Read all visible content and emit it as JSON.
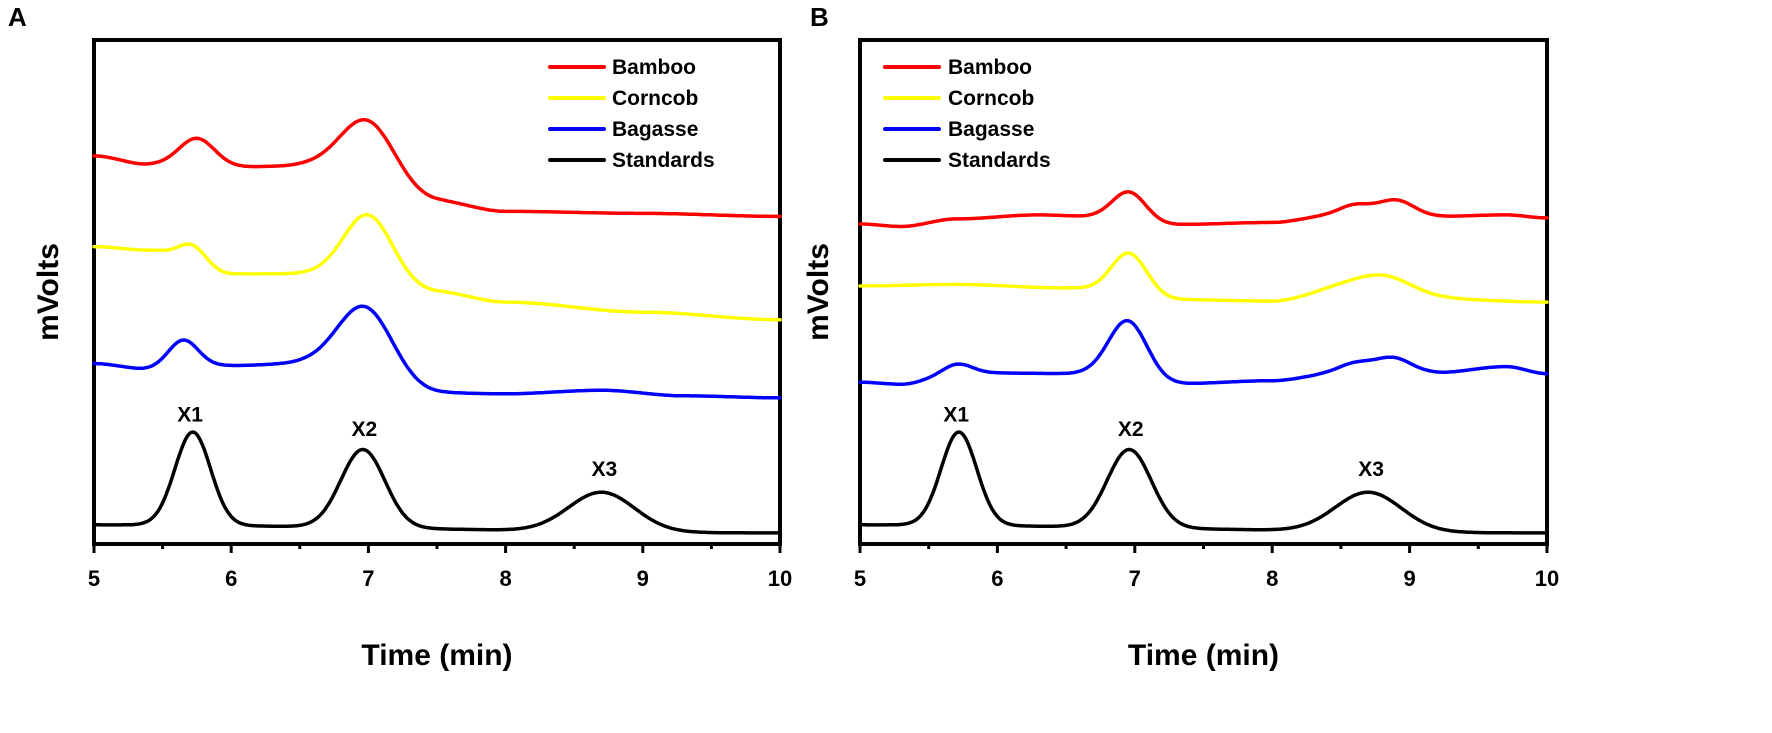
{
  "chart_data": [
    {
      "type": "line",
      "panel_label": "A",
      "xlabel": "Time (min)",
      "ylabel": "mVolts",
      "xlim": [
        5,
        10
      ],
      "ylim": [
        0,
        100
      ],
      "x_ticks": [
        "5",
        "6",
        "7",
        "8",
        "9",
        "10"
      ],
      "legend": {
        "placement": "top-right",
        "entries": [
          {
            "name": "Bamboo",
            "color": "#ff0000"
          },
          {
            "name": "Corncob",
            "color": "#ffff00"
          },
          {
            "name": "Bagasse",
            "color": "#0000ff"
          },
          {
            "name": "Standards",
            "color": "#000000"
          }
        ]
      },
      "series": [
        {
          "name": "Bamboo",
          "color": "#ff0000",
          "baseline": [
            [
              5,
              77
            ],
            [
              5.4,
              75.3
            ],
            [
              6.0,
              74.8
            ],
            [
              6.5,
              75
            ],
            [
              7.5,
              68
            ],
            [
              8.0,
              66
            ],
            [
              9.0,
              65.6
            ],
            [
              10,
              65
            ]
          ],
          "peaks": [
            [
              5.75,
              5.5,
              0.13
            ],
            [
              7.0,
              12.5,
              0.2
            ]
          ]
        },
        {
          "name": "Corncob",
          "color": "#ffff00",
          "baseline": [
            [
              5,
              59
            ],
            [
              5.4,
              58.3
            ],
            [
              6.0,
              53.6
            ],
            [
              6.5,
              53.6
            ],
            [
              7.5,
              50
            ],
            [
              8.0,
              48
            ],
            [
              9.0,
              46
            ],
            [
              10,
              44.5
            ]
          ],
          "peaks": [
            [
              5.72,
              3.6,
              0.1
            ],
            [
              7.0,
              13.5,
              0.18
            ]
          ]
        },
        {
          "name": "Bagasse",
          "color": "#0000ff",
          "baseline": [
            [
              5,
              35.8
            ],
            [
              5.4,
              34.7
            ],
            [
              6.0,
              35.4
            ],
            [
              6.5,
              35.8
            ],
            [
              7.5,
              30
            ],
            [
              8.0,
              29.8
            ],
            [
              8.7,
              30.5
            ],
            [
              9.3,
              29.4
            ],
            [
              10,
              29
            ]
          ],
          "peaks": [
            [
              5.65,
              5.5,
              0.11
            ],
            [
              6.98,
              14,
              0.2
            ]
          ]
        },
        {
          "name": "Standards",
          "color": "#000000",
          "baseline": [
            [
              5,
              3.8
            ],
            [
              10,
              2.2
            ]
          ],
          "peaks": [
            [
              5.72,
              18.5,
              0.13
            ],
            [
              6.96,
              15.5,
              0.16
            ],
            [
              8.7,
              7.8,
              0.24
            ]
          ]
        }
      ],
      "annotations": [
        {
          "text": "X1",
          "x": 5.7,
          "y": 24.3
        },
        {
          "text": "X2",
          "x": 6.97,
          "y": 21.4
        },
        {
          "text": "X3",
          "x": 8.72,
          "y": 13.5
        }
      ]
    },
    {
      "type": "line",
      "panel_label": "B",
      "xlabel": "Time (min)",
      "ylabel": "mVolts",
      "xlim": [
        5,
        10
      ],
      "ylim": [
        0,
        100
      ],
      "x_ticks": [
        "5",
        "6",
        "7",
        "8",
        "9",
        "10"
      ],
      "legend": {
        "placement": "top-left",
        "entries": [
          {
            "name": "Bamboo",
            "color": "#ff0000"
          },
          {
            "name": "Corncob",
            "color": "#ffff00"
          },
          {
            "name": "Bagasse",
            "color": "#0000ff"
          },
          {
            "name": "Standards",
            "color": "#000000"
          }
        ]
      },
      "series": [
        {
          "name": "Bamboo",
          "color": "#ff0000",
          "baseline": [
            [
              5,
              63.5
            ],
            [
              5.3,
              63
            ],
            [
              5.7,
              64.5
            ],
            [
              6.3,
              65.3
            ],
            [
              6.7,
              65
            ],
            [
              7.3,
              63.4
            ],
            [
              8.0,
              63.8
            ],
            [
              8.4,
              65
            ],
            [
              9.2,
              65
            ],
            [
              9.7,
              65.3
            ],
            [
              10,
              64.7
            ]
          ],
          "peaks": [
            [
              6.96,
              5.5,
              0.12
            ],
            [
              8.6,
              2.2,
              0.12
            ],
            [
              8.9,
              3.2,
              0.13
            ]
          ]
        },
        {
          "name": "Corncob",
          "color": "#ffff00",
          "baseline": [
            [
              5,
              51.2
            ],
            [
              5.7,
              51.5
            ],
            [
              6.5,
              50.8
            ],
            [
              7.3,
              48.5
            ],
            [
              8.0,
              48.2
            ],
            [
              8.5,
              50.5
            ],
            [
              9.2,
              48.6
            ],
            [
              10,
              48
            ]
          ],
          "peaks": [
            [
              6.96,
              8.3,
              0.13
            ],
            [
              8.82,
              3.6,
              0.22
            ]
          ]
        },
        {
          "name": "Bagasse",
          "color": "#0000ff",
          "baseline": [
            [
              5,
              32.1
            ],
            [
              5.3,
              31.7
            ],
            [
              5.7,
              34
            ],
            [
              6.6,
              33.8
            ],
            [
              7.3,
              31.8
            ],
            [
              8.0,
              32.4
            ],
            [
              8.4,
              33.5
            ],
            [
              9.2,
              34
            ],
            [
              9.7,
              35.2
            ],
            [
              10,
              33.8
            ]
          ],
          "peaks": [
            [
              5.72,
              1.7,
              0.1
            ],
            [
              6.95,
              11.5,
              0.14
            ],
            [
              8.6,
              2.2,
              0.13
            ],
            [
              8.88,
              3,
              0.13
            ]
          ]
        },
        {
          "name": "Standards",
          "color": "#000000",
          "baseline": [
            [
              5,
              3.8
            ],
            [
              10,
              2.2
            ]
          ],
          "peaks": [
            [
              5.72,
              18.5,
              0.13
            ],
            [
              6.96,
              15.5,
              0.16
            ],
            [
              8.7,
              7.8,
              0.24
            ]
          ]
        }
      ],
      "annotations": [
        {
          "text": "X1",
          "x": 5.7,
          "y": 24.3
        },
        {
          "text": "X2",
          "x": 6.97,
          "y": 21.4
        },
        {
          "text": "X3",
          "x": 8.72,
          "y": 13.5
        }
      ]
    }
  ]
}
